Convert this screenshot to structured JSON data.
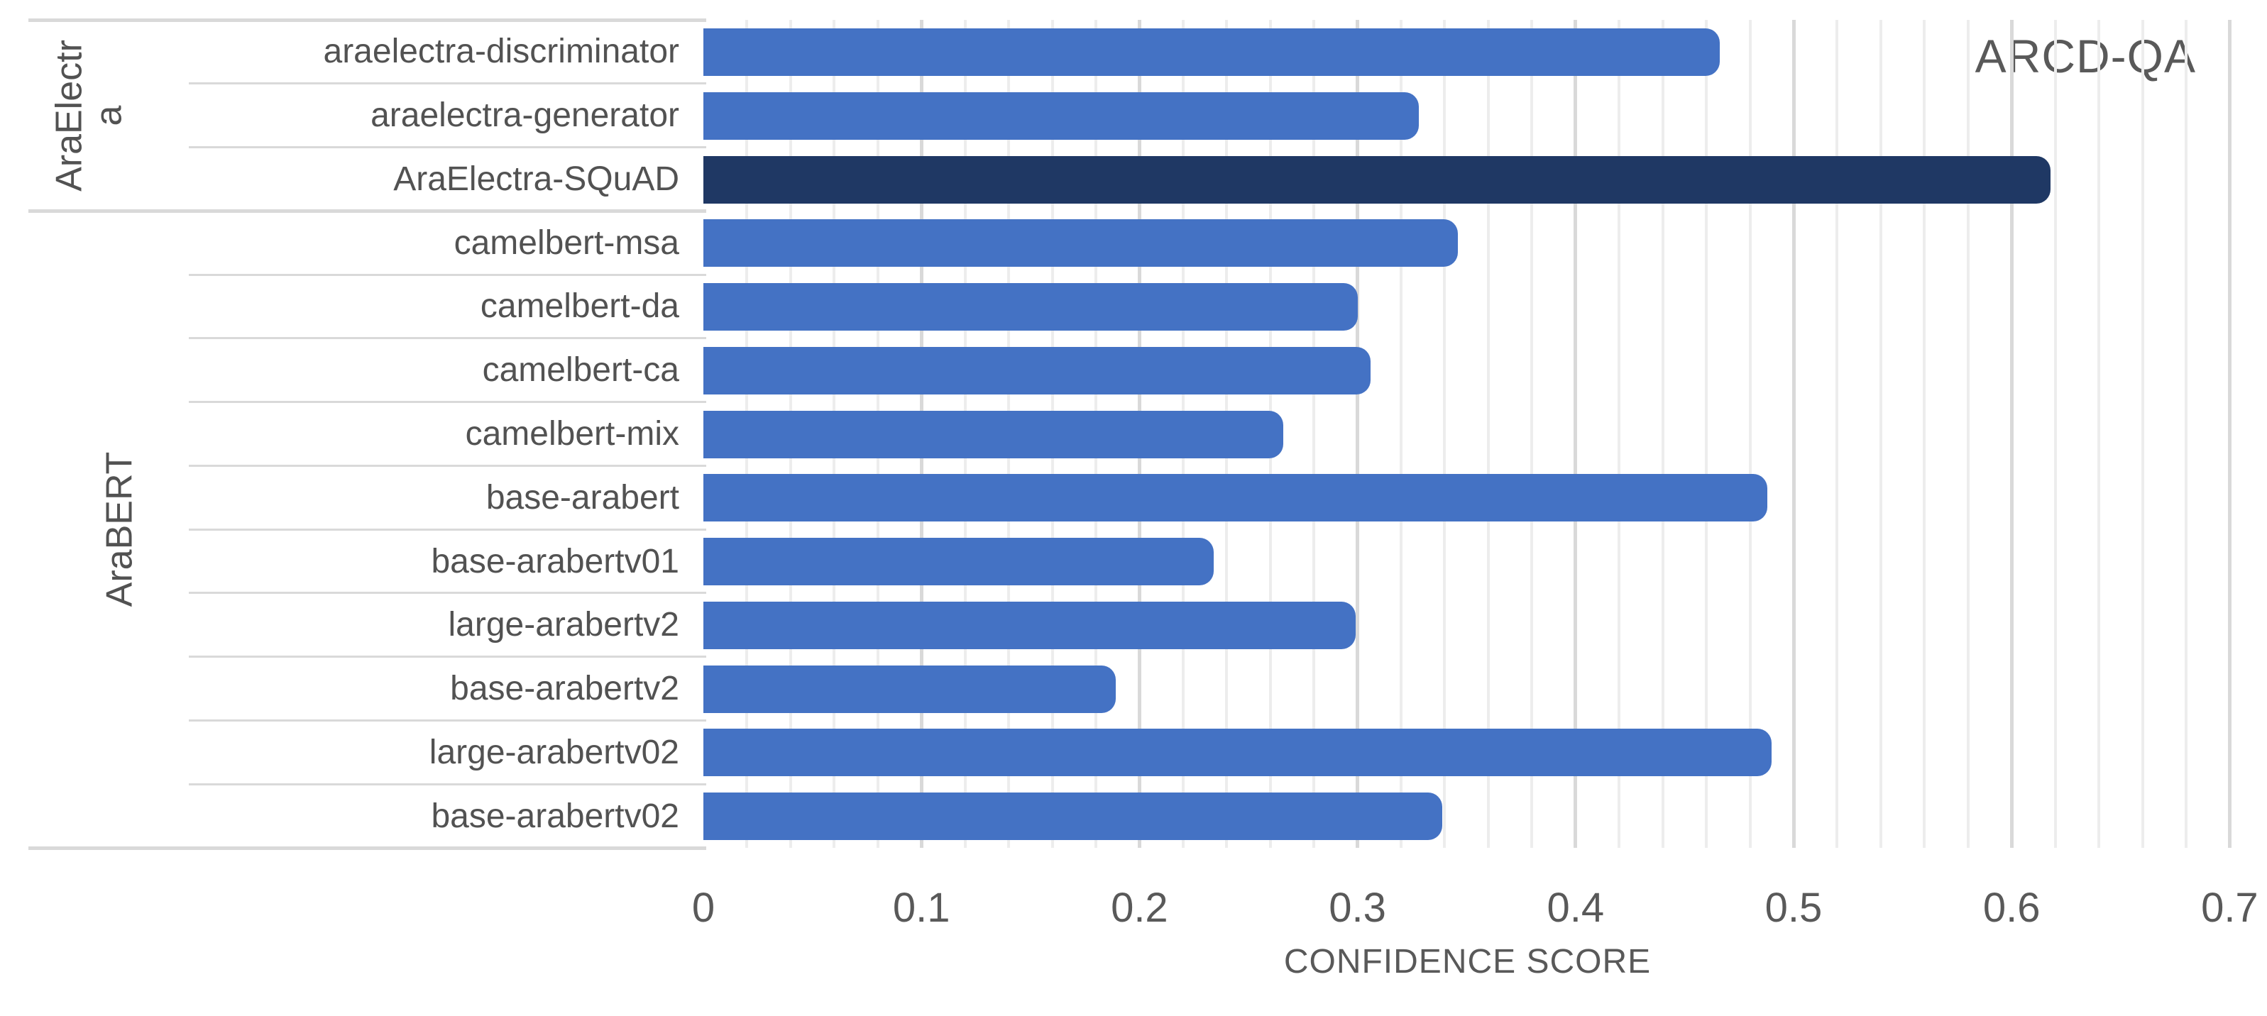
{
  "chart_data": {
    "type": "bar",
    "orientation": "horizontal",
    "title": "ARCD-QA",
    "xlabel": "CONFIDENCE SCORE",
    "ylabel": "",
    "xlim": [
      0,
      0.7
    ],
    "grid": "vertical",
    "minor_grid_step": 0.02,
    "major_grid_step": 0.1,
    "legend": "none",
    "xticks": [
      {
        "value": 0,
        "label": "0"
      },
      {
        "value": 0.1,
        "label": "0.1"
      },
      {
        "value": 0.2,
        "label": "0.2"
      },
      {
        "value": 0.3,
        "label": "0.3"
      },
      {
        "value": 0.4,
        "label": "0.4"
      },
      {
        "value": 0.5,
        "label": "0.5"
      },
      {
        "value": 0.6,
        "label": "0.6"
      },
      {
        "value": 0.7,
        "label": "0.7"
      }
    ],
    "groups": [
      {
        "label": "AraElectra",
        "categories": [
          "araelectra-discriminator",
          "araelectra-generator",
          "AraElectra-SQuAD"
        ],
        "values": [
          0.466,
          0.328,
          0.618
        ]
      },
      {
        "label": "AraBERT",
        "categories": [
          "camelbert-msa",
          "camelbert-da",
          "camelbert-ca",
          "camelbert-mix",
          "base-arabert",
          "base-arabertv01",
          "large-arabertv2",
          "base-arabertv2",
          "large-arabertv02",
          "base-arabertv02"
        ],
        "values": [
          0.346,
          0.3,
          0.306,
          0.266,
          0.488,
          0.234,
          0.299,
          0.189,
          0.49,
          0.339
        ]
      }
    ],
    "highlighted_category": "AraElectra-SQuAD",
    "colors": {
      "bar": "#4472C4",
      "highlighted_bar": "#1F3864",
      "gridline_minor": "#EDEDED",
      "gridline_major": "#D9D9D9",
      "axis_line": "#D9D9D9",
      "title_text": "#595959",
      "axis_text": "#595959",
      "category_text": "#525252"
    }
  }
}
